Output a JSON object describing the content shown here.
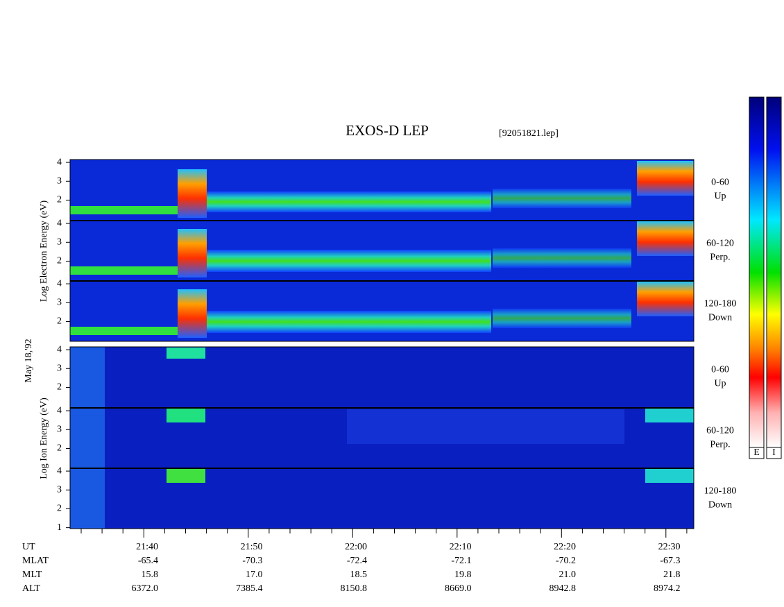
{
  "title": "EXOS-D LEP",
  "file": "[92051821.lep]",
  "date": "May 18,'92",
  "electron_axis": "Log Electron Energy (eV)",
  "ion_axis": "Log Ion Energy (eV)",
  "ylim": [
    0.95,
    4.15
  ],
  "panels": [
    {
      "label": "0-60",
      "sub": "Up",
      "yticks": [
        2,
        3,
        4
      ]
    },
    {
      "label": "60-120",
      "sub": "Perp.",
      "yticks": [
        2,
        3,
        4
      ]
    },
    {
      "label": "120-180",
      "sub": "Down",
      "yticks": [
        2,
        3,
        4
      ]
    },
    {
      "label": "0-60",
      "sub": "Up",
      "yticks": [
        2,
        3,
        4
      ]
    },
    {
      "label": "60-120",
      "sub": "Perp.",
      "yticks": [
        2,
        3,
        4
      ]
    },
    {
      "label": "120-180",
      "sub": "Down",
      "yticks": [
        1,
        2,
        3,
        4
      ]
    }
  ],
  "rows": [
    {
      "label": "UT",
      "values": [
        "21:40",
        "21:50",
        "22:00",
        "22:10",
        "22:20",
        "22:30"
      ]
    },
    {
      "label": "MLAT",
      "values": [
        "-65.4",
        "-70.3",
        "-72.4",
        "-72.1",
        "-70.2",
        "-67.3"
      ]
    },
    {
      "label": "MLT",
      "values": [
        "15.8",
        "17.0",
        "18.5",
        "19.8",
        "21.0",
        "21.8"
      ]
    },
    {
      "label": "ALT",
      "values": [
        "6372.0",
        "7385.4",
        "8150.8",
        "8669.0",
        "8942.8",
        "8974.2"
      ]
    }
  ],
  "colorbars": [
    "E",
    "I"
  ]
}
